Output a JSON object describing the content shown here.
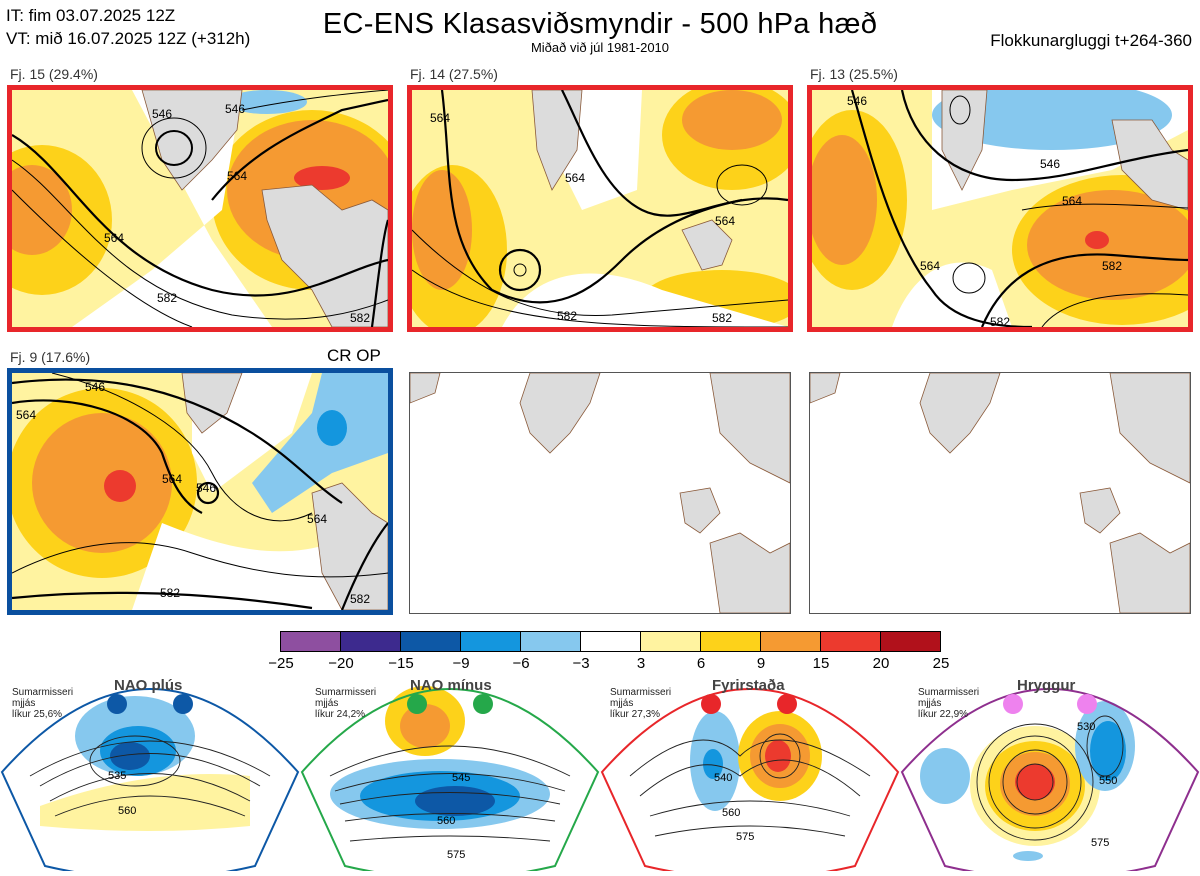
{
  "header": {
    "it_line": "IT: fim 03.07.2025 12Z",
    "vt_line": "VT: mið 16.07.2025 12Z  (+312h)",
    "title": "EC-ENS Klasasviðsmyndir - 500 hPa hæð",
    "subtitle": "Miðað við júl 1981-2010",
    "window": "Flokkunargluggi t+264-360"
  },
  "colors": {
    "red_frame": "#e8262a",
    "blue_frame": "#0a4f9e",
    "land": "#dcdcdc",
    "coast": "#8a5a3a"
  },
  "clusters": [
    {
      "label": "Fj. 15 (29.4%)",
      "frame": "red",
      "contours": [
        "546",
        "546",
        "564",
        "564",
        "582",
        "582"
      ]
    },
    {
      "label": "Fj. 14 (27.5%)",
      "frame": "red",
      "contours": [
        "564",
        "564",
        "564",
        "582",
        "582"
      ]
    },
    {
      "label": "Fj. 13 (25.5%)",
      "frame": "red",
      "contours": [
        "546",
        "546",
        "564",
        "564",
        "582",
        "582"
      ]
    },
    {
      "label": "Fj. 9 (17.6%)",
      "frame": "blue",
      "extra": "CR OP",
      "contours": [
        "546",
        "546",
        "564",
        "564",
        "564",
        "582",
        "582"
      ]
    }
  ],
  "colorbar": {
    "ticks": [
      "−25",
      "−20",
      "−15",
      "−9",
      "−6",
      "−3",
      "3",
      "6",
      "9",
      "15",
      "20",
      "25"
    ],
    "colors": [
      "#8e4fa0",
      "#3d2a8e",
      "#0d58a6",
      "#1496de",
      "#86c8ee",
      "#ffffff",
      "#fff3a0",
      "#fdd21a",
      "#f59a32",
      "#ec3a2e",
      "#b1111b"
    ]
  },
  "regimes": [
    {
      "name": "NAO plús",
      "season": "Sumarmisseri",
      "metric": "mjjás",
      "prob": "líkur 25,6%",
      "color": "#0d58a6",
      "contours": [
        "535",
        "560"
      ]
    },
    {
      "name": "NAO mínus",
      "season": "Sumarmisseri",
      "metric": "mjjás",
      "prob": "líkur 24,2%",
      "color": "#25a84a",
      "contours": [
        "545",
        "560",
        "575"
      ]
    },
    {
      "name": "Fyrirstaða",
      "season": "Sumarmisseri",
      "metric": "mjjás",
      "prob": "líkur 27,3%",
      "color": "#e8262a",
      "contours": [
        "540",
        "560",
        "575"
      ]
    },
    {
      "name": "Hryggur",
      "season": "Sumarmisseri",
      "metric": "mjjás",
      "prob": "líkur 22,9%",
      "color": "#8e2f8e",
      "contours": [
        "530",
        "550",
        "575"
      ]
    }
  ]
}
